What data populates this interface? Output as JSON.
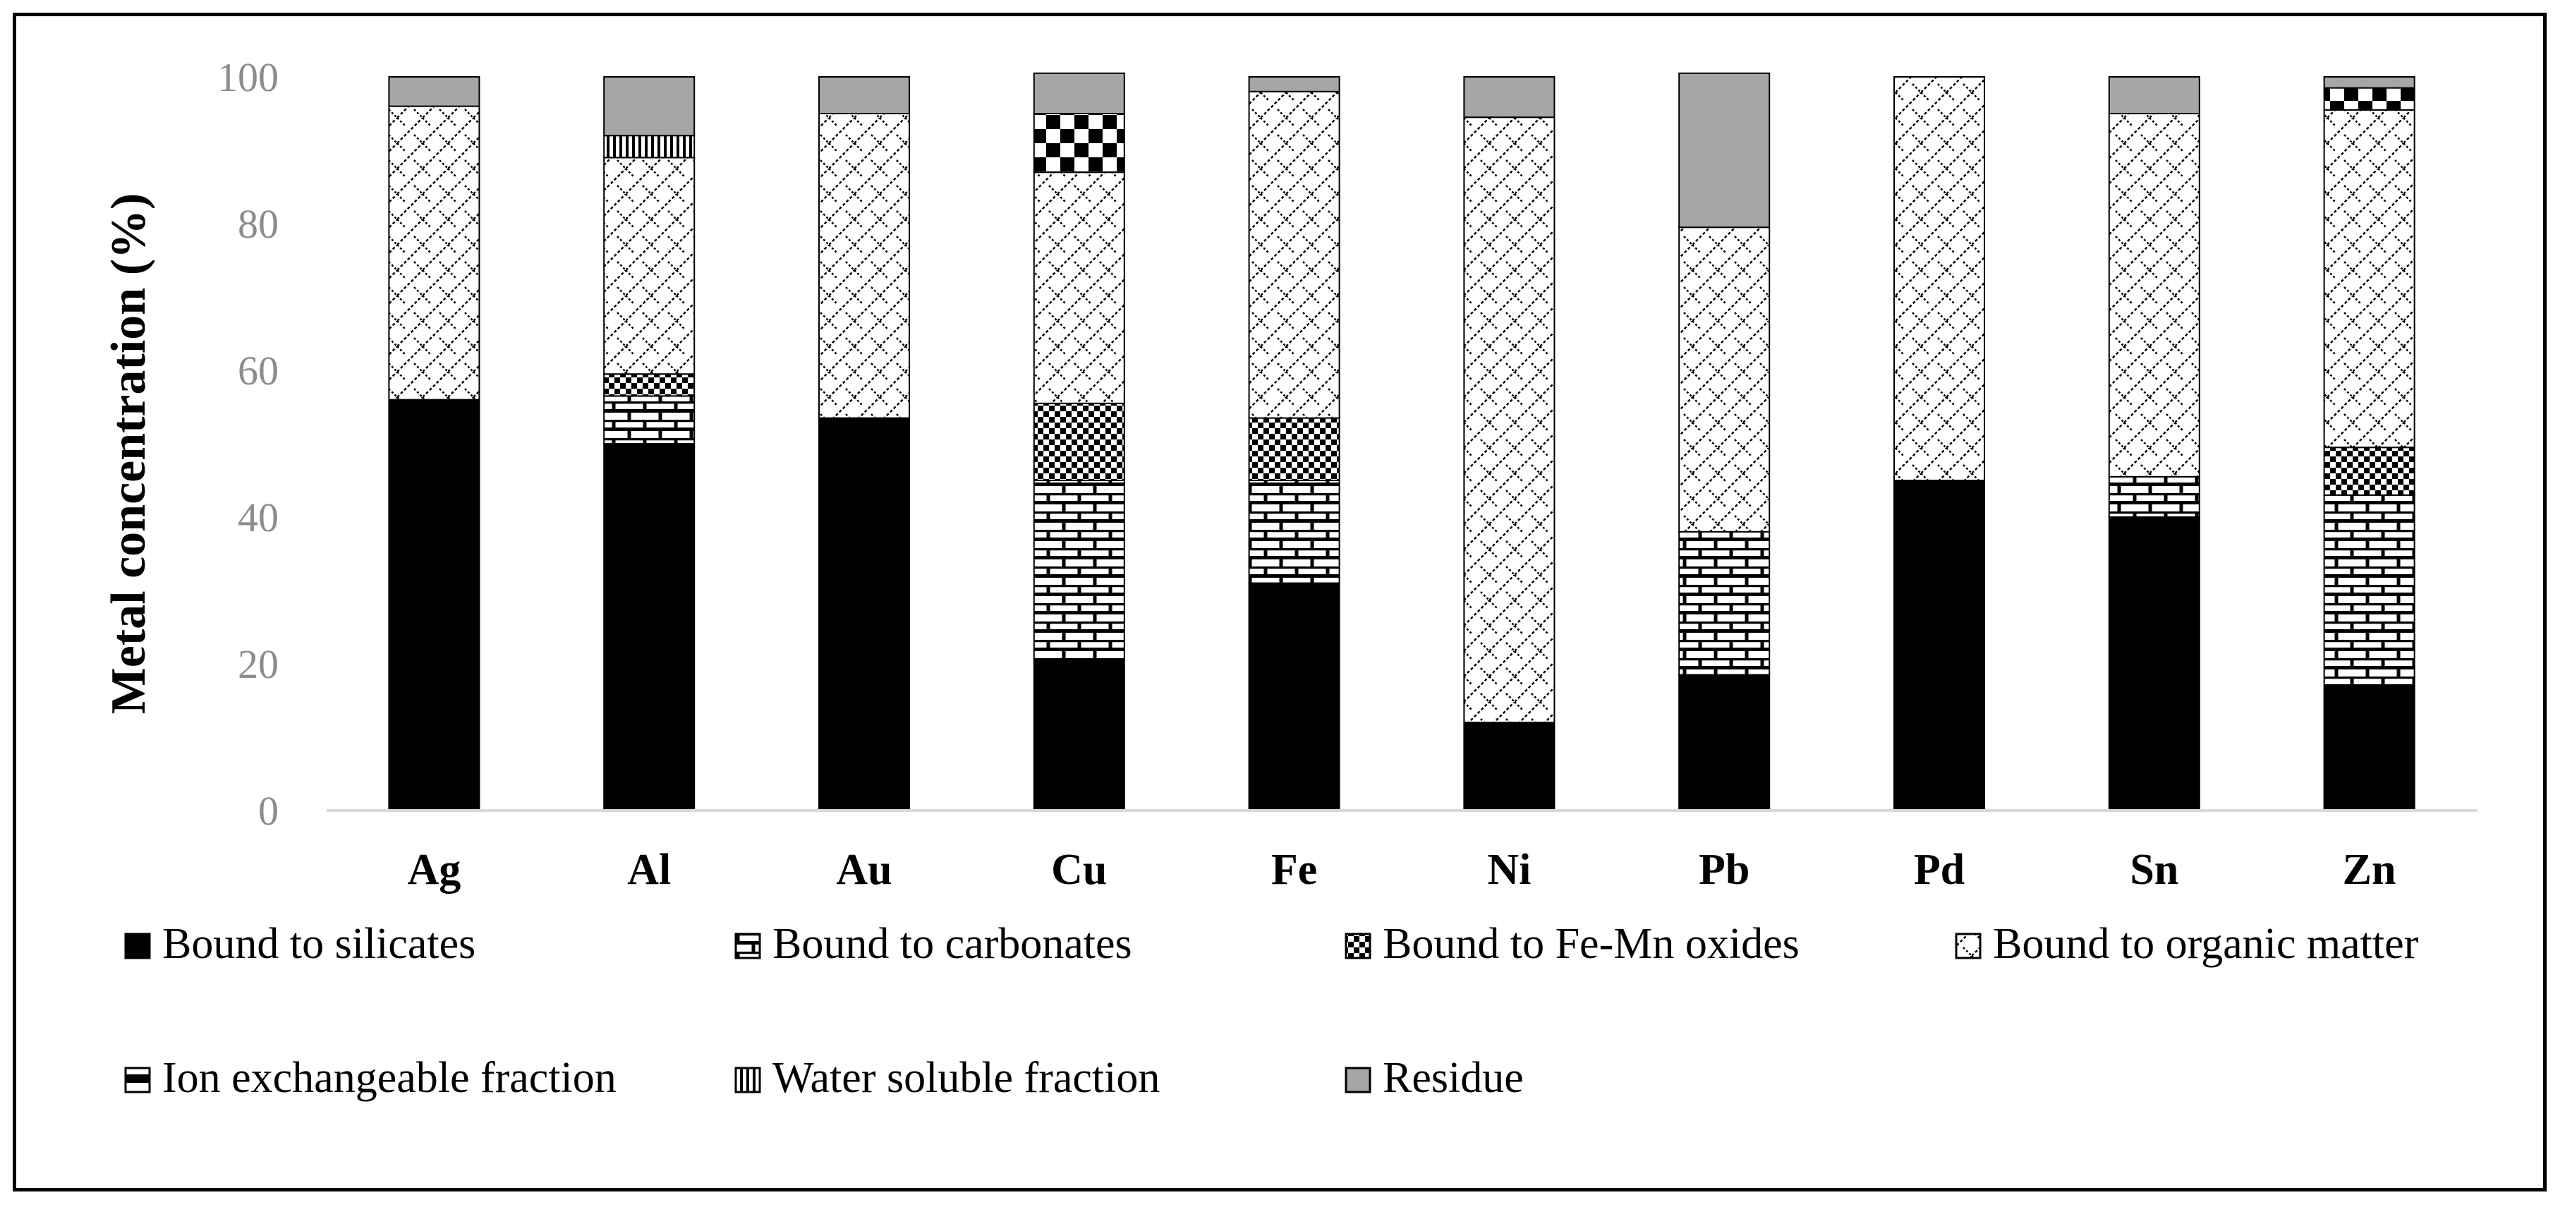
{
  "chart_data": {
    "type": "bar",
    "stacked": true,
    "ylabel": "Metal concentration (%)",
    "ylim": [
      0,
      100
    ],
    "yticks": [
      0,
      20,
      40,
      60,
      80,
      100
    ],
    "grid": false,
    "legend_position": "bottom",
    "categories": [
      "Ag",
      "Al",
      "Au",
      "Cu",
      "Fe",
      "Ni",
      "Pb",
      "Pd",
      "Sn",
      "Zn"
    ],
    "series": [
      {
        "name": "Bound to silicates",
        "pattern": "solid-black",
        "values": [
          56,
          50,
          53.5,
          20.5,
          31,
          12,
          18.5,
          45,
          40,
          17
        ]
      },
      {
        "name": "Bound to carbonates",
        "pattern": "brick",
        "values": [
          0,
          6.5,
          0,
          24.5,
          14,
          0,
          19.5,
          0,
          5.5,
          26
        ]
      },
      {
        "name": "Bound to Fe-Mn oxides",
        "pattern": "checker-small",
        "values": [
          0,
          3,
          0,
          10.5,
          8.5,
          0,
          0,
          0,
          0,
          6.5
        ]
      },
      {
        "name": "Bound to organic matter",
        "pattern": "diamond-lattice",
        "values": [
          40,
          29.5,
          41.5,
          31.5,
          44.5,
          82.5,
          41.5,
          55,
          49.5,
          46
        ]
      },
      {
        "name": "Ion exchangeable fraction",
        "pattern": "checker-large",
        "values": [
          0,
          0,
          0,
          8,
          0,
          0,
          0,
          0,
          0,
          3
        ]
      },
      {
        "name": "Water soluble fraction",
        "pattern": "vertical-lines",
        "values": [
          0,
          3,
          0,
          0,
          0,
          0,
          0,
          0,
          0,
          0
        ]
      },
      {
        "name": "Residue",
        "pattern": "solid-gray",
        "values": [
          4,
          8,
          5,
          5.5,
          2,
          5.5,
          21,
          0,
          5,
          1.5
        ]
      }
    ],
    "legend_rows": [
      [
        "Bound to silicates",
        "Bound to carbonates",
        "Bound to Fe-Mn oxides",
        "Bound to organic matter"
      ],
      [
        "Ion exchangeable fraction",
        "Water soluble fraction",
        "Residue"
      ]
    ],
    "colors": {
      "black": "#000000",
      "gray": "#a6a6a6",
      "axis": "#d9d9d9",
      "tick_text": "#8c8c8c"
    }
  }
}
